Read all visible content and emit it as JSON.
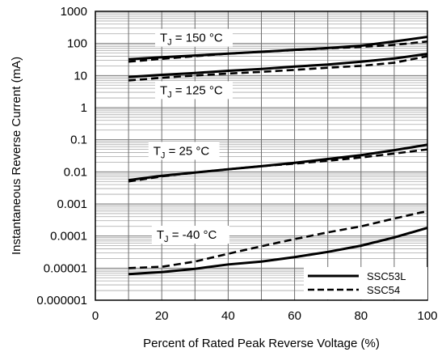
{
  "chart_data": {
    "type": "line",
    "xlabel": "Percent of Rated Peak Reverse Voltage (%)",
    "ylabel": "Instantaneous Reverse Current (mA)",
    "xlim": [
      0,
      100
    ],
    "ylim": [
      1e-06,
      1000
    ],
    "yscale": "log",
    "grid": true,
    "legend_position": "bottom-right",
    "xticks": [
      "0",
      "20",
      "40",
      "60",
      "80",
      "100"
    ],
    "yticks": [
      "0.000001",
      "0.00001",
      "0.0001",
      "0.001",
      "0.01",
      "0.1",
      "1",
      "10",
      "100",
      "1000"
    ],
    "legend": [
      {
        "label": "SSC53L",
        "style": "solid"
      },
      {
        "label": "SSC54",
        "style": "dashed"
      }
    ],
    "annotations": [
      {
        "prefix": "T",
        "sub": "J",
        "suffix": " = 150 °C",
        "x": 18,
        "y": 150
      },
      {
        "prefix": "T",
        "sub": "J",
        "suffix": " = 125 °C",
        "x": 18,
        "y": 3.5
      },
      {
        "prefix": "T",
        "sub": "J",
        "suffix": " = 25 °C",
        "x": 16,
        "y": 0.045
      },
      {
        "prefix": "T",
        "sub": "J",
        "suffix": " = -40 °C",
        "x": 17,
        "y": 0.00011
      }
    ],
    "series": [
      {
        "group": "150",
        "style": "solid",
        "x": [
          10,
          20,
          30,
          40,
          50,
          60,
          70,
          80,
          90,
          100
        ],
        "y": [
          32,
          37,
          42,
          48,
          55,
          63,
          72,
          85,
          115,
          160
        ]
      },
      {
        "group": "150",
        "style": "dashed",
        "x": [
          10,
          20,
          30,
          40,
          50,
          60,
          70,
          80,
          90,
          100
        ],
        "y": [
          27,
          33,
          40,
          48,
          55,
          62,
          70,
          78,
          90,
          115
        ]
      },
      {
        "group": "125",
        "style": "solid",
        "x": [
          10,
          20,
          30,
          40,
          50,
          60,
          70,
          80,
          90,
          100
        ],
        "y": [
          9,
          10.5,
          12,
          14,
          16,
          19,
          22,
          27,
          34,
          47
        ]
      },
      {
        "group": "125",
        "style": "dashed",
        "x": [
          10,
          20,
          30,
          40,
          50,
          60,
          70,
          80,
          90,
          100
        ],
        "y": [
          7,
          8.5,
          10,
          11.5,
          13,
          15,
          17.5,
          20,
          25,
          40
        ]
      },
      {
        "group": "25",
        "style": "solid",
        "x": [
          10,
          20,
          30,
          40,
          50,
          60,
          70,
          80,
          90,
          100
        ],
        "y": [
          0.0055,
          0.0075,
          0.0095,
          0.012,
          0.015,
          0.019,
          0.025,
          0.033,
          0.047,
          0.07
        ]
      },
      {
        "group": "25",
        "style": "dashed",
        "x": [
          10,
          20,
          30,
          40,
          50,
          60,
          70,
          80,
          90,
          100
        ],
        "y": [
          0.005,
          0.0072,
          0.0095,
          0.012,
          0.015,
          0.018,
          0.022,
          0.028,
          0.037,
          0.05
        ]
      },
      {
        "group": "-40",
        "style": "solid",
        "x": [
          10,
          20,
          30,
          40,
          50,
          60,
          70,
          80,
          90,
          100
        ],
        "y": [
          6.5e-06,
          7.5e-06,
          9.5e-06,
          1.3e-05,
          1.6e-05,
          2.2e-05,
          3.2e-05,
          5e-05,
          9e-05,
          0.00018
        ]
      },
      {
        "group": "-40",
        "style": "dashed",
        "x": [
          10,
          20,
          30,
          40,
          50,
          60,
          70,
          80,
          90,
          100
        ],
        "y": [
          1e-05,
          1.1e-05,
          1.6e-05,
          2.8e-05,
          4.8e-05,
          8e-05,
          0.00013,
          0.0002,
          0.00035,
          0.0006
        ]
      }
    ]
  }
}
